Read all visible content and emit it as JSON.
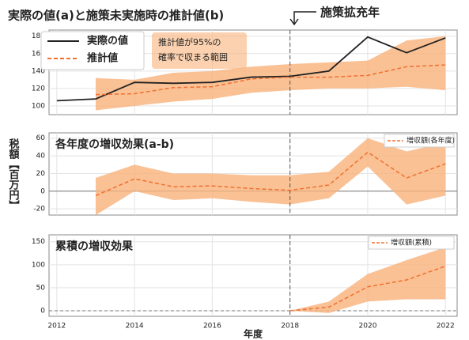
{
  "chart_data": [
    {
      "type": "line",
      "title": "実際の値(a)と施策未実施時の推計値(b)",
      "annotation": "施策拡充年",
      "x": [
        2012,
        2013,
        2014,
        2015,
        2016,
        2017,
        2018,
        2019,
        2020,
        2021,
        2022
      ],
      "xlim": [
        2011.8,
        2022.3
      ],
      "xticks": [
        2012,
        2014,
        2016,
        2018,
        2020,
        2022
      ],
      "ylim": [
        90,
        187
      ],
      "yticks": [
        100,
        120,
        140,
        160,
        180
      ],
      "grid": true,
      "vline": 2018,
      "series": [
        {
          "name": "実際の値",
          "color": "#222222",
          "dash": false,
          "values": [
            106,
            108,
            127,
            126,
            127,
            133,
            134,
            140,
            179,
            161,
            178
          ]
        },
        {
          "name": "推計値",
          "color": "#f07030",
          "dash": true,
          "values": [
            null,
            113,
            114,
            121,
            122,
            131,
            133,
            133,
            135,
            145,
            147
          ]
        }
      ],
      "band": {
        "name": [
          "推計値が95%の",
          "確率で収まる範囲"
        ],
        "color": "#f9b27a",
        "lower": [
          null,
          95,
          100,
          105,
          108,
          115,
          118,
          120,
          120,
          122,
          118
        ],
        "upper": [
          null,
          132,
          130,
          138,
          140,
          145,
          148,
          150,
          152,
          175,
          180
        ]
      }
    },
    {
      "type": "line",
      "title": "各年度の増収効果(a-b)",
      "ylabel": "税額【百万円】",
      "x": [
        2013,
        2014,
        2015,
        2016,
        2017,
        2018,
        2019,
        2020,
        2021,
        2022
      ],
      "xlim": [
        2011.8,
        2022.3
      ],
      "xticks": [
        2012,
        2014,
        2016,
        2018,
        2020,
        2022
      ],
      "ylim": [
        -27,
        66
      ],
      "yticks": [
        -20,
        0,
        20,
        40,
        60
      ],
      "grid": true,
      "vline": 2018,
      "hline": 0,
      "hline_dash": false,
      "series": [
        {
          "name": "増収額(各年度)",
          "color": "#f07030",
          "dash": true,
          "values": [
            -5,
            14,
            5,
            6,
            3,
            1,
            7,
            44,
            15,
            31
          ]
        }
      ],
      "band": {
        "color": "#f9b27a",
        "lower": [
          -27,
          0,
          -10,
          -8,
          -12,
          -15,
          -8,
          28,
          -15,
          -5
        ],
        "upper": [
          15,
          30,
          20,
          20,
          18,
          18,
          22,
          60,
          45,
          55
        ]
      }
    },
    {
      "type": "line",
      "title": "累積の増収効果",
      "xlabel": "年度",
      "x": [
        2018,
        2019,
        2020,
        2021,
        2022
      ],
      "xlim": [
        2011.8,
        2022.3
      ],
      "xticks": [
        2012,
        2014,
        2016,
        2018,
        2020,
        2022
      ],
      "ylim": [
        -12,
        165
      ],
      "yticks": [
        0,
        50,
        100,
        150
      ],
      "grid": true,
      "vline": 2018,
      "hline": 0,
      "hline_dash": true,
      "series": [
        {
          "name": "増収額(累積)",
          "color": "#f07030",
          "dash": true,
          "values": [
            0,
            8,
            52,
            67,
            97
          ]
        }
      ],
      "band": {
        "color": "#f9b27a",
        "lower": [
          0,
          -5,
          20,
          25,
          25
        ],
        "upper": [
          0,
          20,
          80,
          110,
          138
        ]
      }
    }
  ]
}
